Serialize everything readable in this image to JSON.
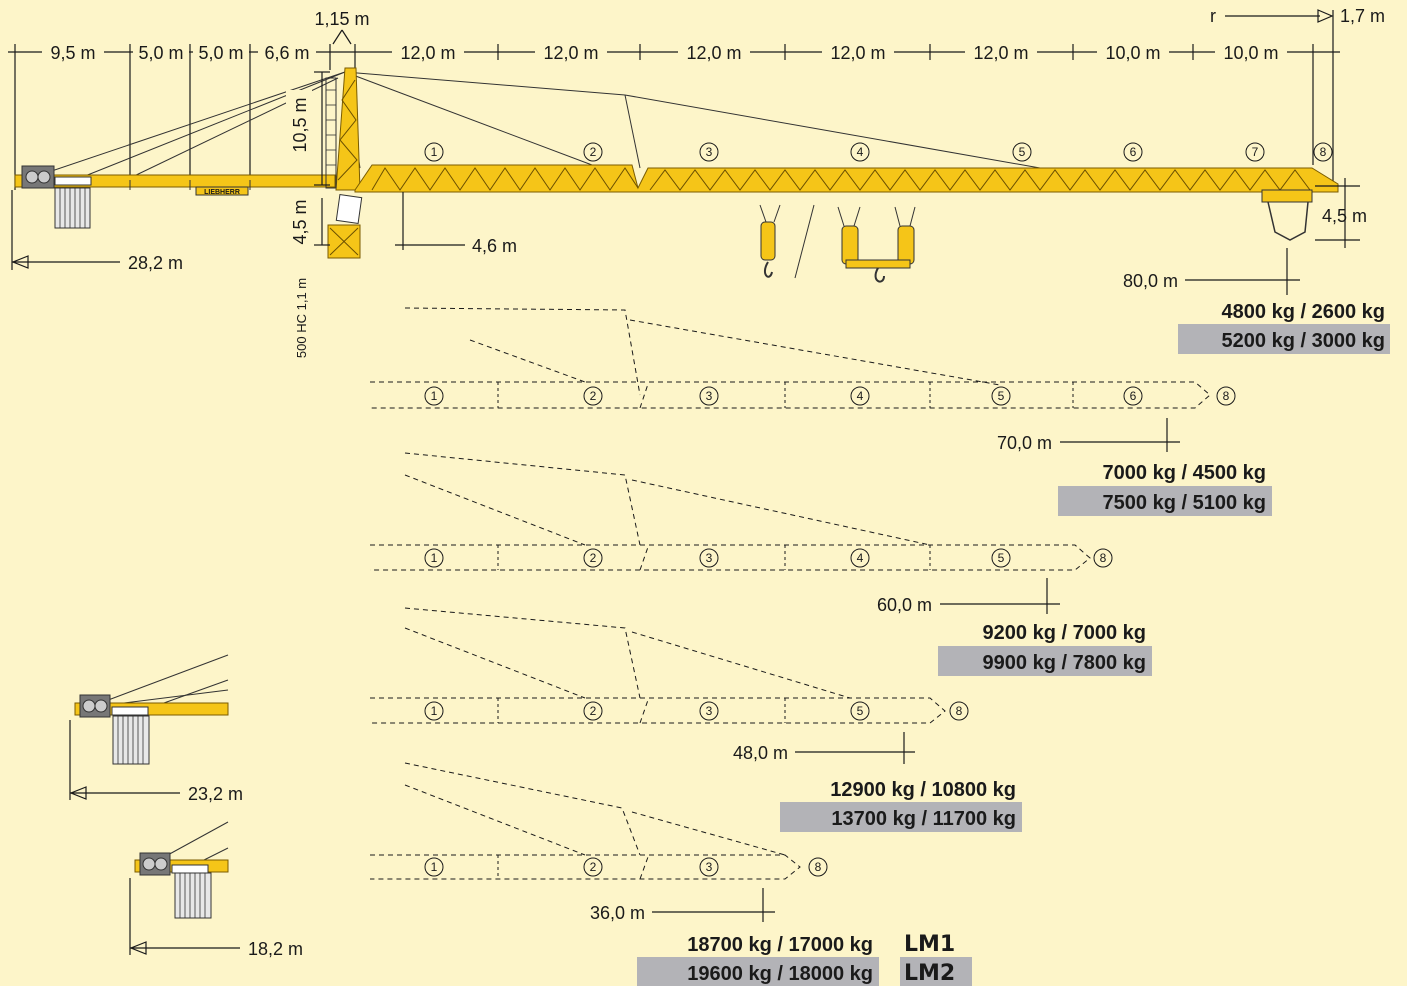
{
  "top_dimensions": {
    "mast_top": "1,15 m",
    "counter_jib": [
      "9,5 m",
      "5,0 m",
      "5,0 m",
      "6,6 m"
    ],
    "jib": [
      "12,0 m",
      "12,0 m",
      "12,0 m",
      "12,0 m",
      "12,0 m",
      "10,0 m",
      "10,0 m"
    ],
    "radius_label": "r",
    "tip": "1,7 m"
  },
  "mast_dimensions": {
    "head_height": "10,5 m",
    "base_height": "4,5 m",
    "jib_offset": "4,6 m",
    "tower_type": "500 HC 1,1 m",
    "hook_height": "4,5 m"
  },
  "counter_jib_lengths": [
    "28,2 m",
    "23,2 m",
    "18,2 m"
  ],
  "brand": "LIEBHERR",
  "sections": {
    "s1": "1",
    "s2": "2",
    "s3": "3",
    "s4": "4",
    "s5": "5",
    "s6": "6",
    "s7": "7",
    "s8": "8"
  },
  "configurations": [
    {
      "radius": "80,0 m",
      "lm1": "4800 kg / 2600 kg",
      "lm2": "5200 kg / 3000 kg"
    },
    {
      "radius": "70,0 m",
      "lm1": "7000 kg / 4500 kg",
      "lm2": "7500 kg / 5100 kg"
    },
    {
      "radius": "60,0 m",
      "lm1": "9200 kg / 7000 kg",
      "lm2": "9900 kg / 7800 kg"
    },
    {
      "radius": "48,0 m",
      "lm1": "12900 kg / 10800 kg",
      "lm2": "13700 kg / 11700 kg"
    },
    {
      "radius": "36,0 m",
      "lm1": "18700 kg / 17000 kg",
      "lm2": "19600 kg / 18000 kg"
    }
  ],
  "legend": {
    "lm1": "LM1",
    "lm2": "LM2"
  },
  "colors": {
    "background": "#fdf5c9",
    "crane": "#f5c518",
    "highlight": "#b3b3b7",
    "line": "#1a1a1a"
  }
}
